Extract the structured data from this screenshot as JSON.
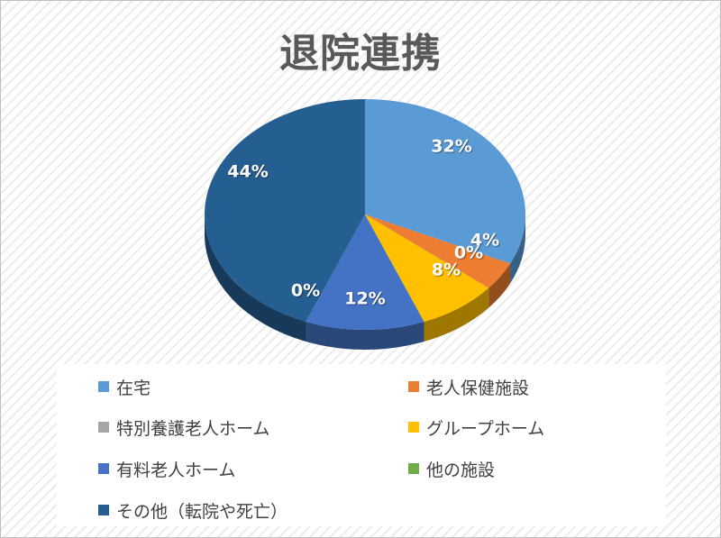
{
  "chart_data": {
    "type": "pie",
    "title": "退院連携",
    "categories": [
      "在宅",
      "老人保健施設",
      "特別養護老人ホーム",
      "グループホーム",
      "有料老人ホーム",
      "他の施設",
      "その他（転院や死亡）"
    ],
    "values": [
      32,
      4,
      0,
      8,
      12,
      0,
      44
    ],
    "value_labels": [
      "32%",
      "4%",
      "0%",
      "8%",
      "12%",
      "0%",
      "44%"
    ],
    "colors": [
      "#5b9bd5",
      "#ed7d31",
      "#a5a5a5",
      "#ffc000",
      "#4472c4",
      "#70ad47",
      "#255e91"
    ],
    "legend_position": "bottom",
    "style": "3d-pie"
  }
}
